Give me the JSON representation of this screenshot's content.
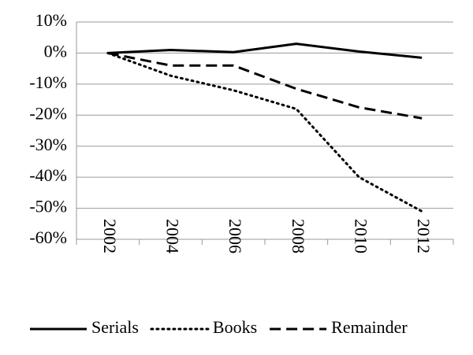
{
  "chart_data": {
    "type": "line",
    "categories": [
      "2002",
      "2004",
      "2006",
      "2008",
      "2010",
      "2012"
    ],
    "series": [
      {
        "name": "Serials",
        "color": "#000000",
        "dash": "solid",
        "values": [
          0,
          1,
          0.3,
          3,
          0.5,
          -1.5
        ]
      },
      {
        "name": "Books",
        "color": "#000000",
        "dash": "dotted",
        "values": [
          0,
          -7.3,
          -12,
          -18,
          -40,
          -51
        ]
      },
      {
        "name": "Remainder",
        "color": "#000000",
        "dash": "dashed",
        "values": [
          0,
          -4,
          -4,
          -11.5,
          -17.5,
          -21
        ]
      }
    ],
    "ylim": [
      -60,
      10
    ],
    "yticks": [
      {
        "value": 10,
        "label": "10%"
      },
      {
        "value": 0,
        "label": "0%"
      },
      {
        "value": -10,
        "label": "-10%"
      },
      {
        "value": -20,
        "label": "-20%"
      },
      {
        "value": -30,
        "label": "-30%"
      },
      {
        "value": -40,
        "label": "-40%"
      },
      {
        "value": -50,
        "label": "-50%"
      },
      {
        "value": -60,
        "label": "-60%"
      }
    ],
    "grid": true,
    "legend": "bottom"
  }
}
